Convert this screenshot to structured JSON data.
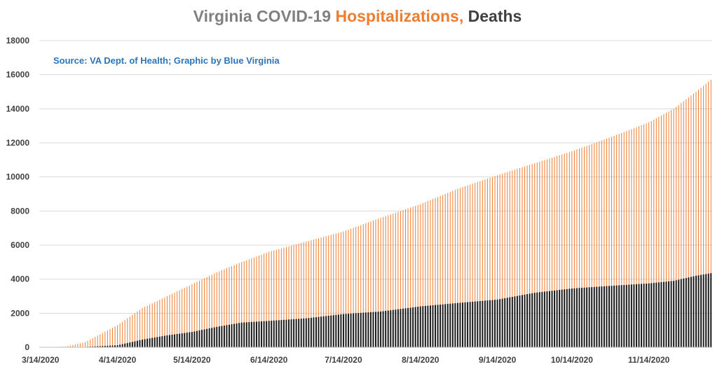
{
  "chart_data": {
    "type": "bar",
    "title": {
      "part1": "Virginia COVID-19 ",
      "part2": "Hospitalizations, ",
      "part3": "Deaths"
    },
    "annotation": "Source: VA Dept. of Health; Graphic by Blue Virginia",
    "xlabel": "",
    "ylabel": "",
    "ylim": [
      0,
      18000
    ],
    "y_ticks": [
      0,
      2000,
      4000,
      6000,
      8000,
      10000,
      12000,
      14000,
      16000,
      18000
    ],
    "x_tick_labels": [
      "3/14/2020",
      "4/14/2020",
      "5/14/2020",
      "6/14/2020",
      "7/14/2020",
      "8/14/2020",
      "9/14/2020",
      "10/14/2020",
      "11/14/2020"
    ],
    "x_tick_days": [
      0,
      31,
      61,
      92,
      122,
      153,
      184,
      214,
      245
    ],
    "date_range": [
      "3/14/2020",
      "12/9/2020"
    ],
    "grid": true,
    "colors": {
      "hospitalizations": "#ed7d31",
      "deaths": "#1a1a1a",
      "grid": "#d9d9d9",
      "title_gray": "#808080",
      "title_orange": "#ed7d31",
      "title_dark": "#404040",
      "source": "#2e75b6"
    },
    "series": [
      {
        "name": "Hospitalizations",
        "anchors": [
          [
            "3/14/2020",
            0
          ],
          [
            "3/24/2020",
            40
          ],
          [
            "4/1/2020",
            300
          ],
          [
            "4/14/2020",
            1300
          ],
          [
            "4/24/2020",
            2300
          ],
          [
            "5/4/2020",
            3000
          ],
          [
            "5/14/2020",
            3700
          ],
          [
            "5/24/2020",
            4400
          ],
          [
            "6/3/2020",
            5000
          ],
          [
            "6/14/2020",
            5600
          ],
          [
            "6/29/2020",
            6200
          ],
          [
            "7/14/2020",
            6800
          ],
          [
            "7/29/2020",
            7600
          ],
          [
            "8/14/2020",
            8400
          ],
          [
            "8/29/2020",
            9300
          ],
          [
            "9/14/2020",
            10100
          ],
          [
            "9/29/2020",
            10800
          ],
          [
            "10/14/2020",
            11500
          ],
          [
            "10/29/2020",
            12300
          ],
          [
            "11/14/2020",
            13200
          ],
          [
            "11/24/2020",
            14000
          ],
          [
            "12/3/2020",
            15000
          ],
          [
            "12/9/2020",
            15700
          ]
        ]
      },
      {
        "name": "Deaths",
        "anchors": [
          [
            "3/14/2020",
            0
          ],
          [
            "3/24/2020",
            5
          ],
          [
            "4/1/2020",
            20
          ],
          [
            "4/14/2020",
            120
          ],
          [
            "4/24/2020",
            450
          ],
          [
            "5/4/2020",
            700
          ],
          [
            "5/14/2020",
            900
          ],
          [
            "5/24/2020",
            1200
          ],
          [
            "6/3/2020",
            1450
          ],
          [
            "6/14/2020",
            1550
          ],
          [
            "6/29/2020",
            1700
          ],
          [
            "7/14/2020",
            1950
          ],
          [
            "7/29/2020",
            2100
          ],
          [
            "8/14/2020",
            2400
          ],
          [
            "8/29/2020",
            2600
          ],
          [
            "9/14/2020",
            2800
          ],
          [
            "9/29/2020",
            3200
          ],
          [
            "10/14/2020",
            3450
          ],
          [
            "10/29/2020",
            3600
          ],
          [
            "11/14/2020",
            3750
          ],
          [
            "11/24/2020",
            3900
          ],
          [
            "12/3/2020",
            4200
          ],
          [
            "12/9/2020",
            4350
          ]
        ]
      }
    ]
  }
}
